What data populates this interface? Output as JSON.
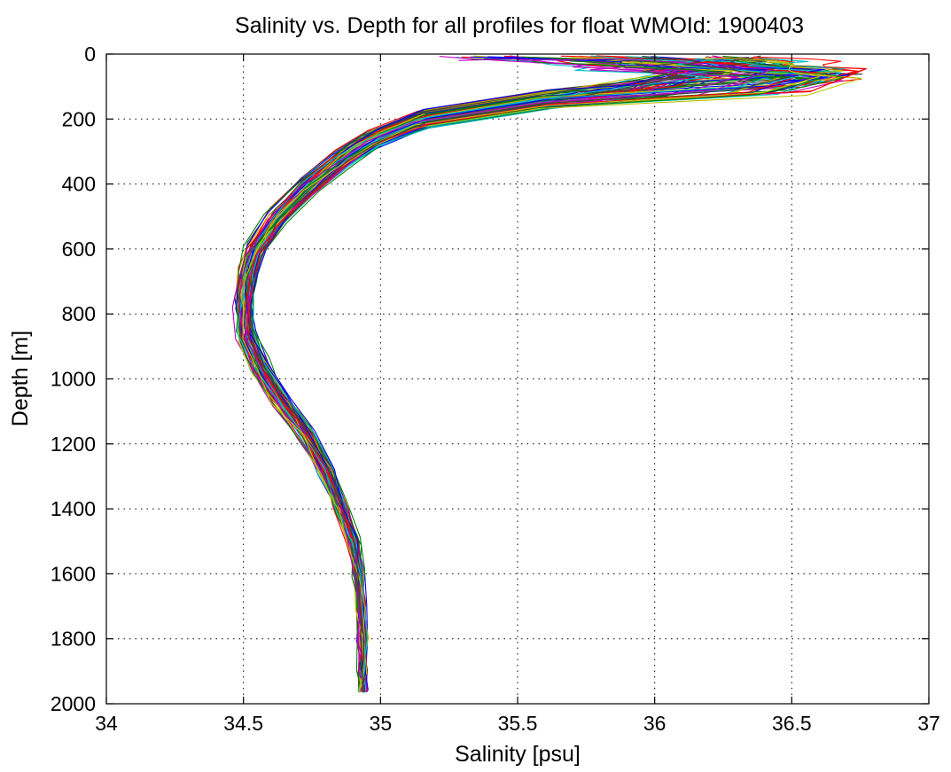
{
  "chart_data": {
    "type": "line",
    "title": "Salinity vs. Depth for all profiles for float WMOId: 1900403",
    "xlabel": "Salinity [psu]",
    "ylabel": "Depth [m]",
    "xlim": [
      34,
      37
    ],
    "ylim": [
      0,
      2000
    ],
    "y_reversed": true,
    "grid": true,
    "legend": "none",
    "xticks": [
      34,
      34.5,
      35,
      35.5,
      36,
      36.5,
      37
    ],
    "xtick_labels": [
      "34",
      "34.5",
      "35",
      "35.5",
      "36",
      "36.5",
      "37"
    ],
    "yticks": [
      0,
      200,
      400,
      600,
      800,
      1000,
      1200,
      1400,
      1600,
      1800,
      2000
    ],
    "ytick_labels": [
      "0",
      "200",
      "400",
      "600",
      "800",
      "1000",
      "1200",
      "1400",
      "1600",
      "1800",
      "2000"
    ],
    "colors": [
      "#0000ff",
      "#008000",
      "#ff0000",
      "#00bfbf",
      "#bf00bf",
      "#bfbf00",
      "#404040"
    ],
    "series_count": 70,
    "representative_profile": {
      "salinity": [
        36.2,
        36.4,
        36.2,
        35.6,
        35.15,
        34.97,
        34.86,
        34.74,
        34.62,
        34.54,
        34.51,
        34.5,
        34.51,
        34.56,
        34.63,
        34.72,
        34.8,
        34.86,
        34.9,
        34.92,
        34.93,
        34.935,
        34.935,
        34.935
      ],
      "depth": [
        5,
        50,
        100,
        140,
        200,
        260,
        320,
        400,
        500,
        600,
        680,
        760,
        860,
        960,
        1060,
        1160,
        1280,
        1400,
        1500,
        1600,
        1700,
        1800,
        1900,
        1960
      ]
    }
  }
}
